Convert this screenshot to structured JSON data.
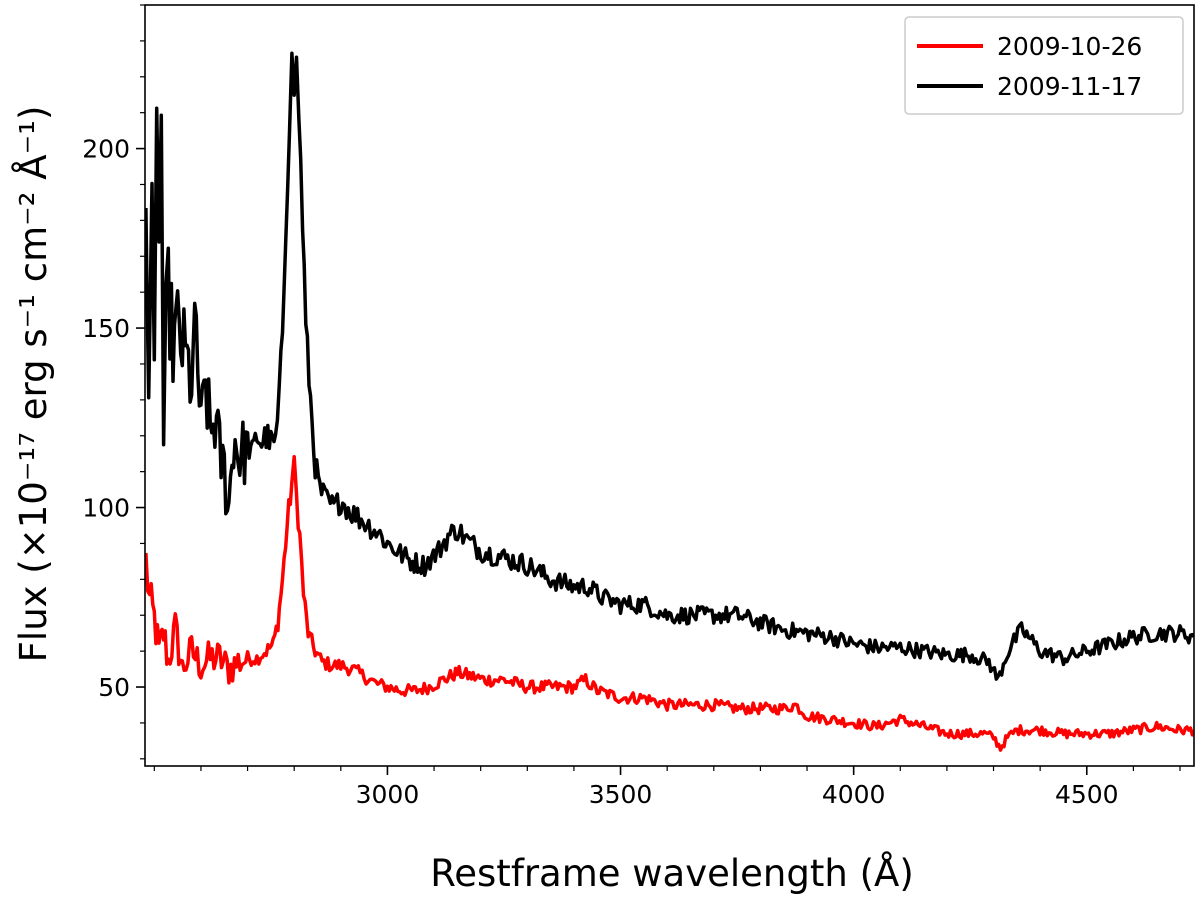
{
  "chart_data": {
    "type": "line",
    "title": "",
    "xlabel": "Restframe wavelength (Å)",
    "ylabel": "Flux (×10⁻¹⁷ erg s⁻¹ cm⁻² Å⁻¹)",
    "xlim": [
      2480,
      4730
    ],
    "ylim": [
      28,
      240
    ],
    "xticks": [
      3000,
      3500,
      4000,
      4500
    ],
    "yticks": [
      50,
      100,
      150,
      200
    ],
    "grid": false,
    "legend_position": "top-right",
    "series": [
      {
        "name": "2009-10-26",
        "color": "#ff0000",
        "x": [
          2482,
          2490,
          2500,
          2510,
          2520,
          2530,
          2545,
          2560,
          2580,
          2600,
          2620,
          2640,
          2660,
          2680,
          2700,
          2720,
          2740,
          2755,
          2765,
          2775,
          2785,
          2795,
          2800,
          2805,
          2812,
          2820,
          2830,
          2845,
          2860,
          2880,
          2900,
          2925,
          2950,
          2975,
          3000,
          3030,
          3060,
          3090,
          3120,
          3150,
          3180,
          3210,
          3250,
          3300,
          3350,
          3400,
          3425,
          3450,
          3500,
          3550,
          3600,
          3650,
          3700,
          3750,
          3800,
          3850,
          3875,
          3900,
          3950,
          4000,
          4050,
          4100,
          4150,
          4200,
          4250,
          4280,
          4300,
          4315,
          4330,
          4350,
          4400,
          4450,
          4500,
          4550,
          4600,
          4650,
          4700,
          4730
        ],
        "y": [
          85,
          74,
          69,
          60,
          65,
          57,
          66,
          55,
          60,
          56,
          58,
          58,
          55,
          57,
          58,
          58,
          60,
          62,
          68,
          80,
          95,
          107,
          111,
          103,
          92,
          76,
          65,
          60,
          57,
          56,
          56,
          55,
          53,
          51,
          50,
          49,
          49,
          50,
          52,
          54,
          53,
          52,
          52,
          50,
          50,
          50,
          52,
          49,
          47,
          47,
          45,
          45,
          45,
          44,
          44,
          44,
          45,
          42,
          41,
          40,
          39,
          41,
          39,
          37,
          37,
          37,
          36,
          33,
          36,
          38,
          38,
          37,
          37,
          37,
          38,
          39,
          38,
          38
        ]
      },
      {
        "name": "2009-11-17",
        "color": "#000000",
        "x": [
          2482,
          2488,
          2495,
          2500,
          2505,
          2510,
          2515,
          2520,
          2525,
          2530,
          2540,
          2550,
          2560,
          2570,
          2580,
          2590,
          2600,
          2610,
          2620,
          2630,
          2640,
          2650,
          2660,
          2670,
          2680,
          2690,
          2700,
          2710,
          2720,
          2730,
          2740,
          2750,
          2760,
          2768,
          2775,
          2782,
          2790,
          2795,
          2800,
          2805,
          2810,
          2818,
          2825,
          2835,
          2845,
          2855,
          2870,
          2885,
          2900,
          2920,
          2940,
          2960,
          2980,
          3000,
          3020,
          3050,
          3080,
          3110,
          3130,
          3150,
          3170,
          3200,
          3250,
          3300,
          3350,
          3400,
          3430,
          3460,
          3500,
          3550,
          3600,
          3650,
          3700,
          3750,
          3800,
          3850,
          3900,
          3950,
          4000,
          4050,
          4100,
          4150,
          4200,
          4250,
          4290,
          4310,
          4325,
          4340,
          4360,
          4375,
          4400,
          4450,
          4500,
          4550,
          4600,
          4650,
          4700,
          4730
        ],
        "y": [
          190,
          120,
          180,
          150,
          205,
          175,
          210,
          108,
          150,
          160,
          145,
          150,
          145,
          140,
          135,
          150,
          120,
          135,
          120,
          125,
          115,
          110,
          100,
          120,
          115,
          115,
          118,
          115,
          120,
          118,
          120,
          118,
          118,
          130,
          150,
          180,
          210,
          222,
          218,
          222,
          210,
          180,
          150,
          130,
          112,
          105,
          102,
          100,
          102,
          99,
          97,
          95,
          93,
          90,
          88,
          85,
          84,
          88,
          92,
          94,
          91,
          88,
          86,
          84,
          80,
          78,
          78,
          75,
          73,
          73,
          70,
          70,
          70,
          70,
          68,
          66,
          65,
          64,
          62,
          61,
          61,
          60,
          59,
          59,
          57,
          52,
          58,
          62,
          66,
          64,
          60,
          58,
          60,
          62,
          64,
          65,
          65,
          64
        ]
      }
    ]
  }
}
